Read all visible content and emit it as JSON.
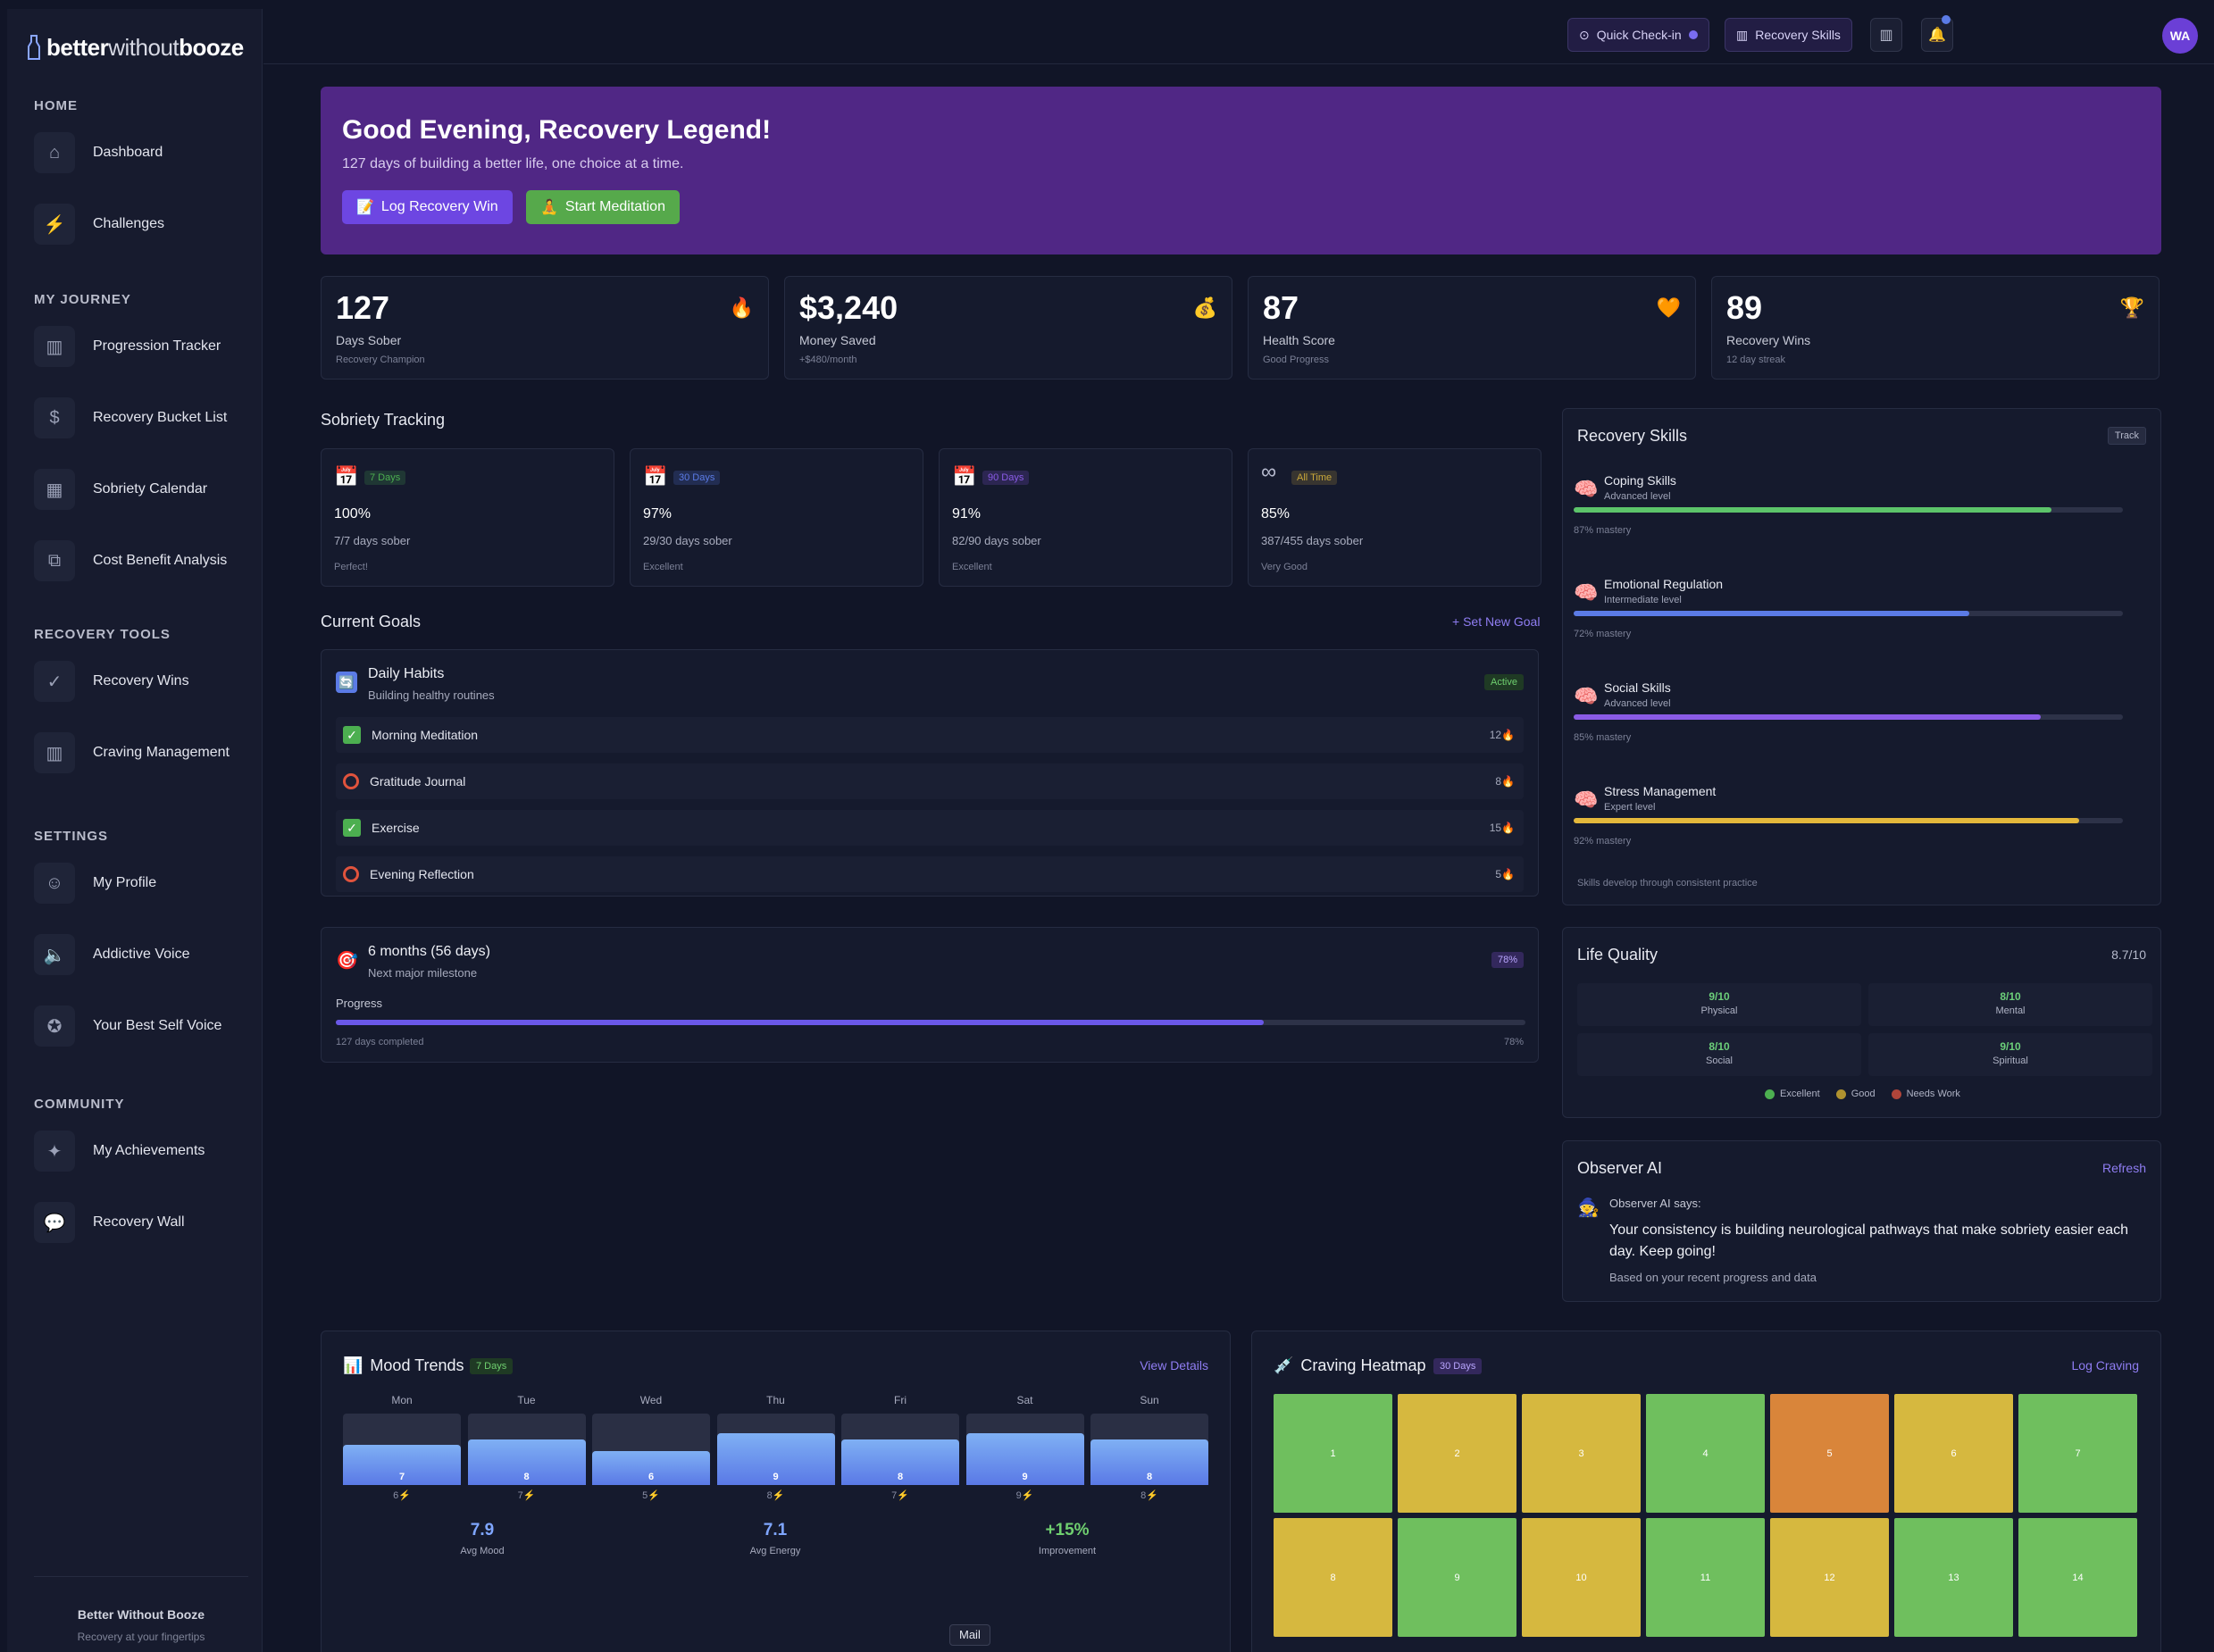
{
  "app": {
    "logo_dark": "better",
    "logo_mid": "without",
    "logo_light": "booze"
  },
  "topbar": {
    "quick_checkin": "Quick Check-in",
    "recovery_skills": "Recovery Skills",
    "avatar": "WA"
  },
  "sidebar": {
    "sections": [
      {
        "title": "HOME",
        "items": [
          {
            "label": "Dashboard",
            "icon": "home-icon"
          },
          {
            "label": "Challenges",
            "icon": "bolt-icon"
          }
        ]
      },
      {
        "title": "MY JOURNEY",
        "items": [
          {
            "label": "Progression Tracker",
            "icon": "bar-chart-icon"
          },
          {
            "label": "Recovery Bucket List",
            "icon": "dollar-icon"
          },
          {
            "label": "Sobriety Calendar",
            "icon": "calendar-icon"
          },
          {
            "label": "Cost Benefit Analysis",
            "icon": "scale-icon"
          }
        ]
      },
      {
        "title": "RECOVERY TOOLS",
        "items": [
          {
            "label": "Recovery Wins",
            "icon": "check-circle-icon"
          },
          {
            "label": "Craving Management",
            "icon": "bar-chart-icon"
          }
        ]
      },
      {
        "title": "SETTINGS",
        "items": [
          {
            "label": "My Profile",
            "icon": "user-icon"
          },
          {
            "label": "Addictive Voice",
            "icon": "speaker-icon"
          },
          {
            "label": "Your Best Self Voice",
            "icon": "badge-icon"
          }
        ]
      },
      {
        "title": "COMMUNITY",
        "items": [
          {
            "label": "My Achievements",
            "icon": "sparkle-icon"
          },
          {
            "label": "Recovery Wall",
            "icon": "chat-icon"
          }
        ]
      }
    ],
    "footer_title": "Better Without Booze",
    "footer_sub": "Recovery at your fingertips"
  },
  "hero": {
    "title": "Good Evening, Recovery Legend!",
    "subtitle": "127 days of building a better life, one choice at a time.",
    "btn_log": "Log Recovery Win",
    "btn_meditate": "Start Meditation"
  },
  "stats": [
    {
      "value": "127",
      "label": "Days Sober",
      "sub": "Recovery Champion",
      "icon": "fire-icon"
    },
    {
      "value": "$3,240",
      "label": "Money Saved",
      "sub": "+$480/month",
      "icon": "money-bag-icon"
    },
    {
      "value": "87",
      "label": "Health Score",
      "sub": "Good Progress",
      "icon": "heart-icon"
    },
    {
      "value": "89",
      "label": "Recovery Wins",
      "sub": "12 day streak",
      "icon": "trophy-icon"
    }
  ],
  "sobriety": {
    "title": "Sobriety Tracking",
    "cards": [
      {
        "tag": "7 Days",
        "pct": "100%",
        "days": "7/7 days sober",
        "quality": "Perfect!",
        "tag_color": "#4caf50"
      },
      {
        "tag": "30 Days",
        "pct": "97%",
        "days": "29/30 days sober",
        "quality": "Excellent",
        "tag_color": "#5b7be6"
      },
      {
        "tag": "90 Days",
        "pct": "91%",
        "days": "82/90 days sober",
        "quality": "Excellent",
        "tag_color": "#8a5be6"
      },
      {
        "tag": "All Time",
        "pct": "85%",
        "days": "387/455 days sober",
        "quality": "Very Good",
        "tag_color": "#c9a73a"
      }
    ]
  },
  "goals": {
    "title": "Current Goals",
    "set_new": "+ Set New Goal",
    "habits_title": "Daily Habits",
    "habits_sub": "Building healthy routines",
    "habits_badge": "Active",
    "habits": [
      {
        "name": "Morning Meditation",
        "done": true,
        "streak": "12"
      },
      {
        "name": "Gratitude Journal",
        "done": false,
        "streak": "8"
      },
      {
        "name": "Exercise",
        "done": true,
        "streak": "15"
      },
      {
        "name": "Evening Reflection",
        "done": false,
        "streak": "5"
      }
    ],
    "milestone_title": "6 months (56 days)",
    "milestone_sub": "Next major milestone",
    "milestone_badge": "78%",
    "progress_label": "Progress",
    "progress_done": "127 days completed",
    "progress_pct_text": "78%",
    "progress_value": 0.78
  },
  "skills": {
    "title": "Recovery Skills",
    "track": "Track",
    "items": [
      {
        "name": "Coping Skills",
        "level": "Advanced level",
        "mastery": "87% mastery",
        "value": 0.87,
        "color": "#5cc46a"
      },
      {
        "name": "Emotional Regulation",
        "level": "Intermediate level",
        "mastery": "72% mastery",
        "value": 0.72,
        "color": "#5b7be6"
      },
      {
        "name": "Social Skills",
        "level": "Advanced level",
        "mastery": "85% mastery",
        "value": 0.85,
        "color": "#8a5be6"
      },
      {
        "name": "Stress Management",
        "level": "Expert level",
        "mastery": "92% mastery",
        "value": 0.92,
        "color": "#e4b83b"
      }
    ],
    "footer": "Skills develop through consistent practice"
  },
  "life_quality": {
    "title": "Life Quality",
    "score": "8.7/10",
    "cells": [
      {
        "score": "9/10",
        "label": "Physical",
        "color": "#6cd07a"
      },
      {
        "score": "8/10",
        "label": "Mental",
        "color": "#6cd07a"
      },
      {
        "score": "8/10",
        "label": "Social",
        "color": "#6cd07a"
      },
      {
        "score": "9/10",
        "label": "Spiritual",
        "color": "#6cd07a"
      }
    ],
    "legend": [
      {
        "label": "Excellent",
        "color": "#4caf50"
      },
      {
        "label": "Good",
        "color": "#b0922f"
      },
      {
        "label": "Needs Work",
        "color": "#b0453a"
      }
    ]
  },
  "observer": {
    "title": "Observer AI",
    "refresh": "Refresh",
    "says": "Observer AI says:",
    "message": "Your consistency is building neurological pathways that make sobriety easier each day. Keep going!",
    "basis": "Based on your recent progress and data"
  },
  "mood": {
    "title": "Mood Trends",
    "badge": "7 Days",
    "view": "View Details",
    "days": [
      "Mon",
      "Tue",
      "Wed",
      "Thu",
      "Fri",
      "Sat",
      "Sun"
    ],
    "mood": [
      7,
      8,
      6,
      9,
      8,
      9,
      8
    ],
    "energy": [
      6,
      7,
      5,
      8,
      7,
      9,
      8
    ],
    "avg_mood": "7.9",
    "avg_mood_label": "Avg Mood",
    "avg_energy": "7.1",
    "avg_energy_label": "Avg Energy",
    "improvement": "+15%",
    "improvement_label": "Improvement"
  },
  "heatmap": {
    "title": "Craving Heatmap",
    "badge": "30 Days",
    "log": "Log Craving",
    "cells": [
      {
        "day": "1",
        "color": "#6fbf5e"
      },
      {
        "day": "2",
        "color": "#d6b83f"
      },
      {
        "day": "3",
        "color": "#d6b83f"
      },
      {
        "day": "4",
        "color": "#6fbf5e"
      },
      {
        "day": "5",
        "color": "#d9853a"
      },
      {
        "day": "6",
        "color": "#d6b83f"
      },
      {
        "day": "7",
        "color": "#6fbf5e"
      },
      {
        "day": "8",
        "color": "#d6b83f"
      },
      {
        "day": "9",
        "color": "#6fbf5e"
      },
      {
        "day": "10",
        "color": "#d6b83f"
      },
      {
        "day": "11",
        "color": "#6fbf5e"
      },
      {
        "day": "12",
        "color": "#d6b83f"
      },
      {
        "day": "13",
        "color": "#6fbf5e"
      },
      {
        "day": "14",
        "color": "#6fbf5e"
      }
    ]
  },
  "tooltip": "Mail"
}
